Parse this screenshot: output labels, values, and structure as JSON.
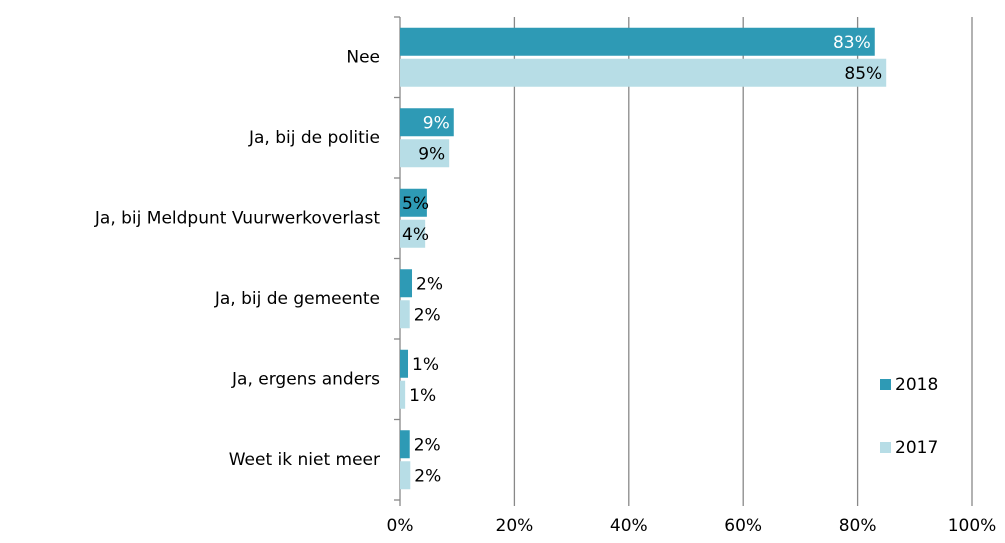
{
  "chart_data": {
    "type": "hbar",
    "categories": [
      "Nee",
      "Ja, bij de politie",
      "Ja, bij Meldpunt Vuurwerkoverlast",
      "Ja, bij de gemeente",
      "Ja, ergens anders",
      "Weet ik niet meer"
    ],
    "series": [
      {
        "name": "2018",
        "color": "#2e9ab5",
        "values": [
          83,
          9.4,
          4.7,
          2.1,
          1.4,
          1.7
        ],
        "value_labels": [
          "83%",
          "9%",
          "5%",
          "2%",
          "1%",
          "2%"
        ]
      },
      {
        "name": "2017",
        "color": "#b7dde6",
        "values": [
          85,
          8.6,
          4.4,
          1.7,
          0.9,
          1.8
        ],
        "value_labels": [
          "85%",
          "9%",
          "4%",
          "2%",
          "1%",
          "2%"
        ]
      }
    ],
    "xlim": [
      0,
      100
    ],
    "xticks": [
      {
        "value": 0,
        "label": "0%"
      },
      {
        "value": 20,
        "label": "20%"
      },
      {
        "value": 40,
        "label": "40%"
      },
      {
        "value": 60,
        "label": "60%"
      },
      {
        "value": 80,
        "label": "80%"
      },
      {
        "value": 100,
        "label": "100%"
      }
    ],
    "grid": true,
    "legend": "right"
  }
}
